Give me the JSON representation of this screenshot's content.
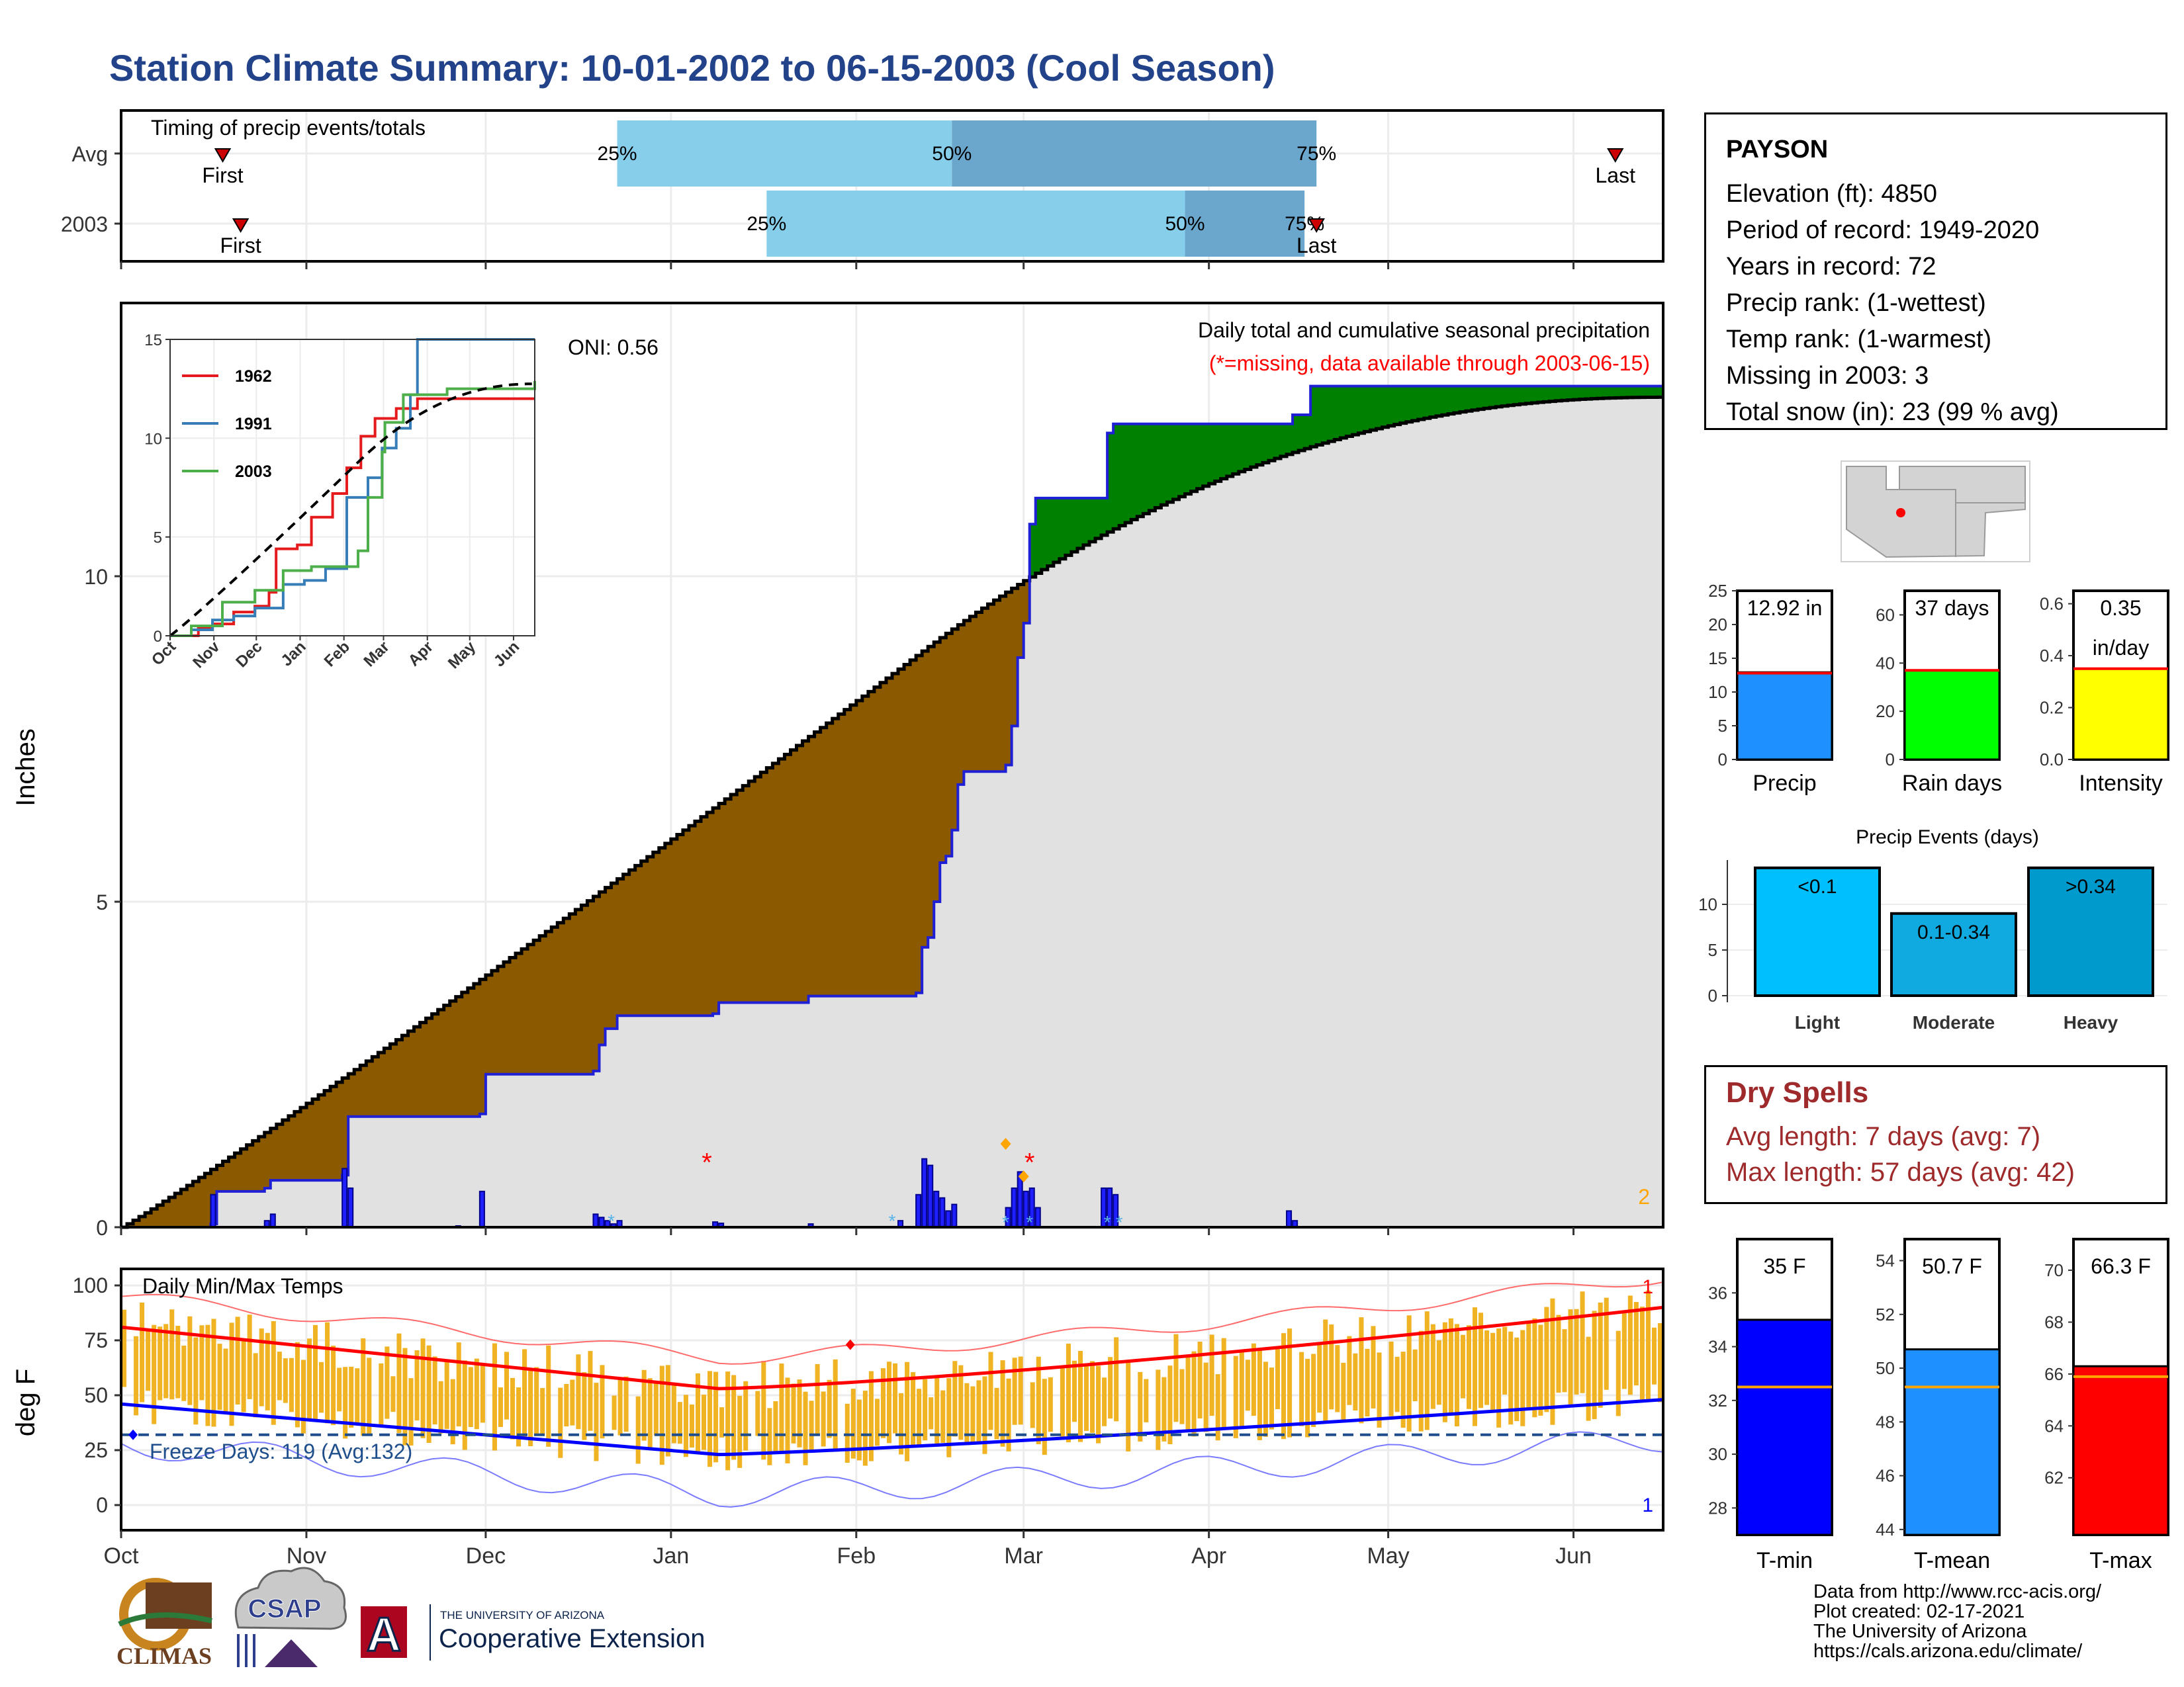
{
  "title": "Station Climate Summary: 10-01-2002 to 06-15-2003 (Cool Season)",
  "timing": {
    "title": "Timing of precip events/totals",
    "rows": [
      {
        "label": "Avg",
        "first_label": "First",
        "last_label": "Last",
        "p25_label": "25%",
        "p50_label": "50%",
        "p75_label": "75%",
        "first": 17,
        "last": 250,
        "p25": 83,
        "p50": 139,
        "p75": 200
      },
      {
        "label": "2003",
        "first_label": "First",
        "last_label": "Last",
        "p25_label": "25%",
        "p50_label": "50%",
        "p75_label": "75%",
        "first": 20,
        "last": 200,
        "p25": 108,
        "p50": 178,
        "p75": 198
      }
    ],
    "colors": {
      "light": "#87ceeb",
      "dark": "#6ba6cd",
      "marker": "#cc0000"
    }
  },
  "precip_panel": {
    "title": "Daily total and cumulative seasonal precipitation",
    "subtitle": "(*=missing, data available through 2003-06-15)",
    "ylabel": "Inches",
    "y_ticks": [
      "0",
      "5",
      "10"
    ],
    "corner_label": "2",
    "oni": "ONI: 0.56",
    "month_ticks": [
      "Oct",
      "Nov",
      "Dec",
      "Jan",
      "Feb",
      "Mar",
      "Apr",
      "May",
      "Jun"
    ],
    "colors": {
      "observed": "#1f1fd6",
      "below_avg": "#8b5a00",
      "above_avg": "#008000",
      "avg_fill": "#e1e1e1"
    }
  },
  "inset": {
    "x_ticks": [
      "Oct",
      "Nov",
      "Dec",
      "Jan",
      "Feb",
      "Mar",
      "Apr",
      "May",
      "Jun"
    ],
    "y_ticks": [
      "0",
      "5",
      "10",
      "15"
    ],
    "legend": [
      {
        "name": "1962",
        "color": "#e41a1c"
      },
      {
        "name": "1991",
        "color": "#377eb8"
      },
      {
        "name": "2003",
        "color": "#4daf4a"
      }
    ]
  },
  "temp_panel": {
    "title": "Daily Min/Max Temps",
    "ylabel": "deg F",
    "y_ticks": [
      "0",
      "25",
      "50",
      "75",
      "100"
    ],
    "freeze_label": "Freeze Days: 119 (Avg:132)",
    "record_high_count": "1",
    "record_low_count": "1",
    "month_ticks": [
      "Oct",
      "Nov",
      "Dec",
      "Jan",
      "Feb",
      "Mar",
      "Apr",
      "May",
      "Jun"
    ]
  },
  "station": {
    "name": "PAYSON",
    "lines": [
      "Elevation (ft): 4850",
      "Period of record: 1949-2020",
      "Years in record: 72",
      "Precip rank:  (1-wettest)",
      "Temp rank:  (1-warmest)",
      "Missing in 2003: 3",
      "Total snow (in): 23 (99 % avg)"
    ]
  },
  "summary_bars": [
    {
      "label": "Precip",
      "value_text": "12.92 in",
      "value": 12.92,
      "avg": 12.8,
      "ymax": 25,
      "ticks": [
        "0",
        "5",
        "10",
        "15",
        "20",
        "25"
      ],
      "color": "#1e90ff"
    },
    {
      "label": "Rain days",
      "value_text": "37 days",
      "value": 37,
      "avg": 37,
      "ymax": 70,
      "ticks": [
        "0",
        "20",
        "40",
        "60"
      ],
      "color": "#00ff00"
    },
    {
      "label": "Intensity",
      "value_text": "0.35",
      "value_text2": "in/day",
      "value": 0.35,
      "avg": 0.35,
      "ymax": 0.65,
      "ticks": [
        "0.0",
        "0.2",
        "0.4",
        "0.6"
      ],
      "color": "#ffff00"
    }
  ],
  "precip_events": {
    "title": "Precip Events (days)",
    "bars": [
      {
        "category": "Light",
        "label": "<0.1",
        "value": 14,
        "color": "#00bfff"
      },
      {
        "category": "Moderate",
        "label": "0.1-0.34",
        "value": 9,
        "color": "#10aae0"
      },
      {
        "category": "Heavy",
        "label": ">0.34",
        "value": 14,
        "color": "#009acd"
      }
    ],
    "ticks": [
      "0",
      "5",
      "10"
    ]
  },
  "dry_spells": {
    "title": "Dry Spells",
    "avg_line": "Avg length: 7 days (avg: 7)",
    "max_line": "Max length: 57 days (avg: 42)"
  },
  "temp_summary": [
    {
      "label": "T-min",
      "value_text": "35 F",
      "value": 35,
      "avg": 32.5,
      "ymin": 27,
      "ymax": 38,
      "ticks": [
        "28",
        "30",
        "32",
        "34",
        "36"
      ],
      "color": "#0000ff"
    },
    {
      "label": "T-mean",
      "value_text": "50.7 F",
      "value": 50.7,
      "avg": 49.3,
      "ymin": 43.8,
      "ymax": 54.8,
      "ticks": [
        "44",
        "46",
        "48",
        "50",
        "52",
        "54"
      ],
      "color": "#1e90ff"
    },
    {
      "label": "T-max",
      "value_text": "66.3 F",
      "value": 66.3,
      "avg": 65.9,
      "ymin": 59.8,
      "ymax": 71.2,
      "ticks": [
        "62",
        "64",
        "66",
        "68",
        "70"
      ],
      "color": "#ff0000"
    }
  ],
  "logos": {
    "climas": "CLIMAS",
    "csap": "CSAP",
    "ua_top": "THE UNIVERSITY OF ARIZONA",
    "ua_bottom": "Cooperative Extension",
    "ua_mark": "A"
  },
  "credits": [
    "Data from http://www.rcc-acis.org/",
    "Plot created: 02-17-2021",
    "The University of Arizona",
    "https://cals.arizona.edu/climate/"
  ]
}
